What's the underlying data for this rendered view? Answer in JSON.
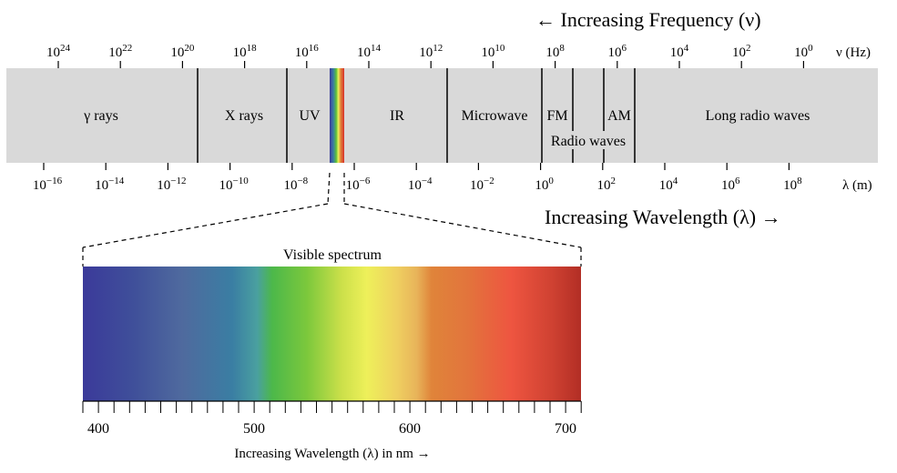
{
  "header": {
    "frequency_title": "← Increasing Frequency (ν)",
    "wavelength_title": "Increasing Wavelength (λ) →"
  },
  "frequency_axis": {
    "unit_label": "ν (Hz)",
    "ticks": [
      {
        "base": "10",
        "exp": "24"
      },
      {
        "base": "10",
        "exp": "22"
      },
      {
        "base": "10",
        "exp": "20"
      },
      {
        "base": "10",
        "exp": "18"
      },
      {
        "base": "10",
        "exp": "16"
      },
      {
        "base": "10",
        "exp": "14"
      },
      {
        "base": "10",
        "exp": "12"
      },
      {
        "base": "10",
        "exp": "10"
      },
      {
        "base": "10",
        "exp": "8"
      },
      {
        "base": "10",
        "exp": "6"
      },
      {
        "base": "10",
        "exp": "4"
      },
      {
        "base": "10",
        "exp": "2"
      },
      {
        "base": "10",
        "exp": "0"
      }
    ]
  },
  "wavelength_axis": {
    "unit_label": "λ (m)",
    "ticks": [
      {
        "base": "10",
        "exp": "−16"
      },
      {
        "base": "10",
        "exp": "−14"
      },
      {
        "base": "10",
        "exp": "−12"
      },
      {
        "base": "10",
        "exp": "−10"
      },
      {
        "base": "10",
        "exp": "−8"
      },
      {
        "base": "10",
        "exp": "−6"
      },
      {
        "base": "10",
        "exp": "−4"
      },
      {
        "base": "10",
        "exp": "−2"
      },
      {
        "base": "10",
        "exp": "0"
      },
      {
        "base": "10",
        "exp": "2"
      },
      {
        "base": "10",
        "exp": "4"
      },
      {
        "base": "10",
        "exp": "6"
      },
      {
        "base": "10",
        "exp": "8"
      }
    ]
  },
  "bands": {
    "gamma": "γ rays",
    "xray": "X rays",
    "uv": "UV",
    "ir": "IR",
    "microwave": "Microwave",
    "fm": "FM",
    "am": "AM",
    "radio": "Radio waves",
    "long_radio": "Long radio waves"
  },
  "visible": {
    "title": "Visible spectrum",
    "axis_labels": [
      "400",
      "500",
      "600",
      "700"
    ],
    "axis_title": "Increasing Wavelength (λ) in nm →"
  },
  "colors": {
    "band_fill": "#d9d9d9",
    "violet": "#3b3a9a",
    "blue": "#3a7ea3",
    "green": "#5bbf3a",
    "yellow": "#eef05a",
    "orange": "#e0843a",
    "red": "#ee5540",
    "deep_red": "#b22e25"
  }
}
